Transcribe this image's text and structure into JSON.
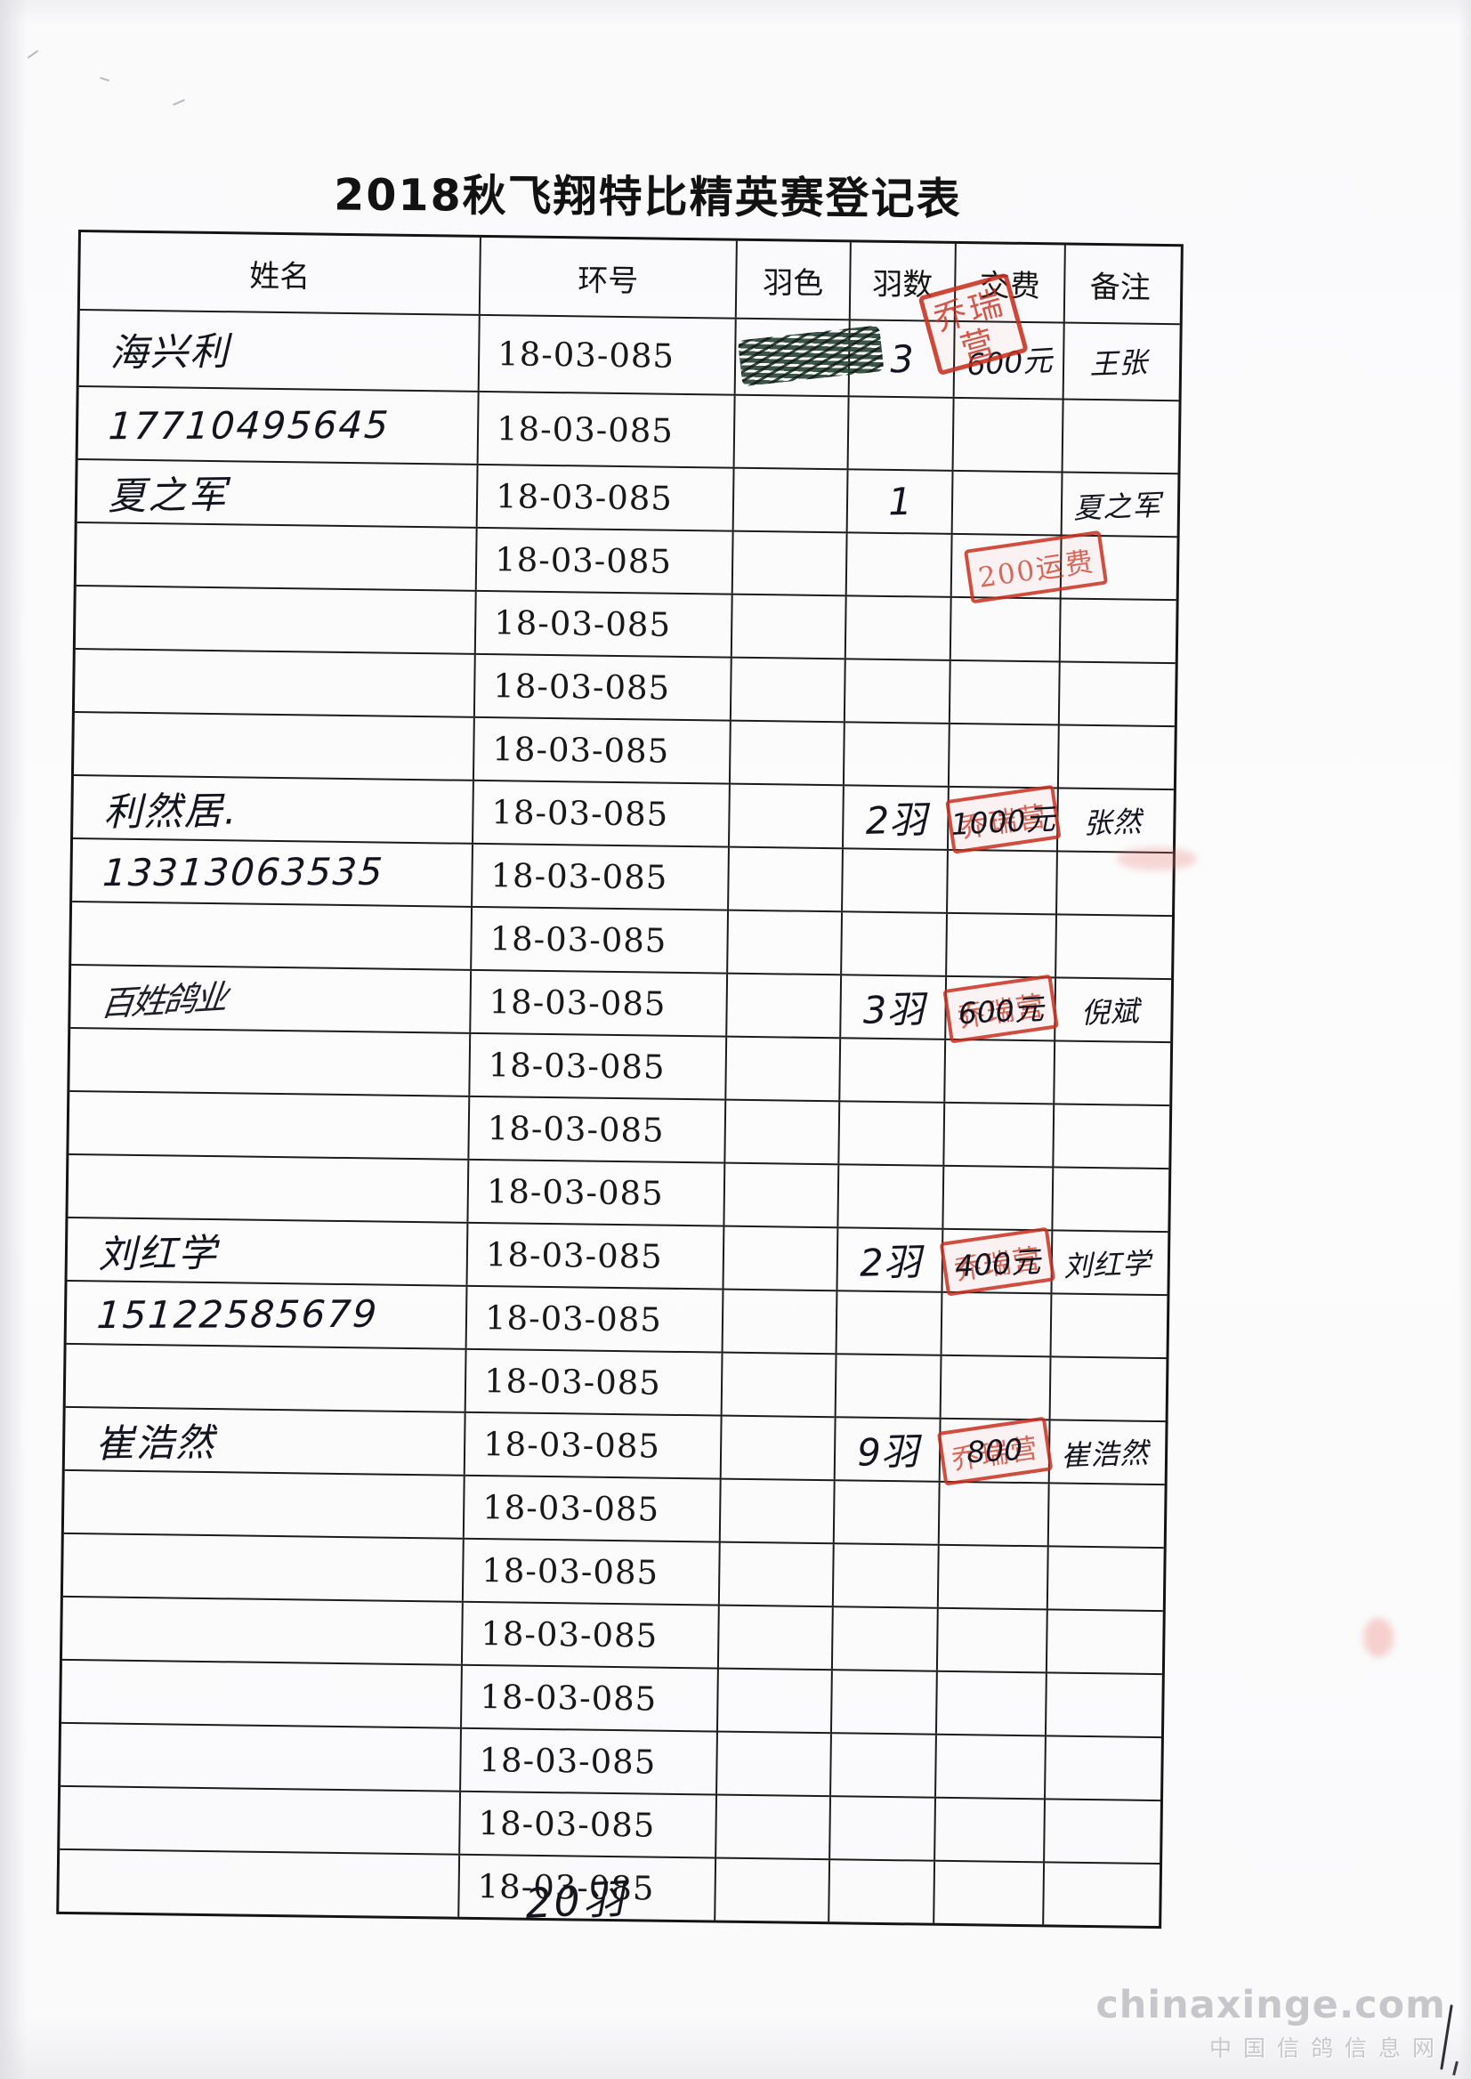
{
  "title": "2018秋飞翔特比精英赛登记表",
  "table": {
    "headers": [
      "姓名",
      "环号",
      "羽色",
      "羽数",
      "交费",
      "备注"
    ],
    "header_stamp": "乔瑞营",
    "rows": [
      {
        "name": "海兴利",
        "name_style": "hw-name",
        "ring": "18-03-085",
        "scribble": true,
        "feather_color": "",
        "count": "3",
        "fee": "600元",
        "fee_stamp": "",
        "note": "王张"
      },
      {
        "name": "17710495645",
        "name_style": "hw-phone",
        "ring": "18-03-085",
        "feather_color": "",
        "count": "",
        "fee": "",
        "fee_stamp": "",
        "note": ""
      },
      {
        "name": "夏之军",
        "name_style": "hw-name",
        "ring": "18-03-085",
        "feather_color": "",
        "count": "1",
        "fee": "",
        "fee_stamp": "",
        "note": "夏之军"
      },
      {
        "name": "",
        "ring": "18-03-085",
        "feather_color": "",
        "count": "",
        "fee": "",
        "fee_stamp": "200运费",
        "stamp_shift": true,
        "note": ""
      },
      {
        "name": "",
        "ring": "18-03-085",
        "feather_color": "",
        "count": "",
        "fee": "",
        "fee_stamp": "",
        "note": ""
      },
      {
        "name": "",
        "ring": "18-03-085",
        "feather_color": "",
        "count": "",
        "fee": "",
        "fee_stamp": "",
        "note": ""
      },
      {
        "name": "",
        "ring": "18-03-085",
        "feather_color": "",
        "count": "",
        "fee": "",
        "fee_stamp": "",
        "note": ""
      },
      {
        "name": "利然居.",
        "name_style": "hw-name",
        "ring": "18-03-085",
        "feather_color": "",
        "count": "2羽",
        "fee": "1000元",
        "fee_stamp": "乔瑞营",
        "note": "张然"
      },
      {
        "name": "13313063535",
        "name_style": "hw-phone",
        "ring": "18-03-085",
        "feather_color": "",
        "count": "",
        "fee": "",
        "fee_stamp": "",
        "note": ""
      },
      {
        "name": "",
        "ring": "18-03-085",
        "feather_color": "",
        "count": "",
        "fee": "",
        "fee_stamp": "",
        "note": ""
      },
      {
        "name": "百姓鸽业",
        "name_style": "hw-scrawl",
        "ring": "18-03-085",
        "feather_color": "",
        "count": "3羽",
        "fee": "600元",
        "fee_stamp": "乔瑞营",
        "note": "倪斌"
      },
      {
        "name": "",
        "ring": "18-03-085",
        "feather_color": "",
        "count": "",
        "fee": "",
        "fee_stamp": "",
        "note": ""
      },
      {
        "name": "",
        "ring": "18-03-085",
        "feather_color": "",
        "count": "",
        "fee": "",
        "fee_stamp": "",
        "note": ""
      },
      {
        "name": "",
        "ring": "18-03-085",
        "feather_color": "",
        "count": "",
        "fee": "",
        "fee_stamp": "",
        "note": ""
      },
      {
        "name": "刘红学",
        "name_style": "hw-name",
        "ring": "18-03-085",
        "feather_color": "",
        "count": "2羽",
        "fee": "400元",
        "fee_stamp": "乔瑞营",
        "note": "刘红学"
      },
      {
        "name": "15122585679",
        "name_style": "hw-phone",
        "ring": "18-03-085",
        "feather_color": "",
        "count": "",
        "fee": "",
        "fee_stamp": "",
        "note": ""
      },
      {
        "name": "",
        "ring": "18-03-085",
        "feather_color": "",
        "count": "",
        "fee": "",
        "fee_stamp": "",
        "note": ""
      },
      {
        "name": "崔浩然",
        "name_style": "hw-name",
        "ring": "18-03-085",
        "feather_color": "",
        "count": "9羽",
        "fee": "800",
        "fee_stamp": "乔瑞营",
        "note": "崔浩然"
      },
      {
        "name": "",
        "ring": "18-03-085",
        "feather_color": "",
        "count": "",
        "fee": "",
        "fee_stamp": "",
        "note": ""
      },
      {
        "name": "",
        "ring": "18-03-085",
        "feather_color": "",
        "count": "",
        "fee": "",
        "fee_stamp": "",
        "note": ""
      },
      {
        "name": "",
        "ring": "18-03-085",
        "feather_color": "",
        "count": "",
        "fee": "",
        "fee_stamp": "",
        "note": ""
      },
      {
        "name": "",
        "ring": "18-03-085",
        "feather_color": "",
        "count": "",
        "fee": "",
        "fee_stamp": "",
        "note": ""
      },
      {
        "name": "",
        "ring": "18-03-085",
        "feather_color": "",
        "count": "",
        "fee": "",
        "fee_stamp": "",
        "note": ""
      },
      {
        "name": "",
        "ring": "18-03-085",
        "feather_color": "",
        "count": "",
        "fee": "",
        "fee_stamp": "",
        "note": ""
      },
      {
        "name": "",
        "ring": "18-03-085",
        "feather_color": "",
        "count": "",
        "fee": "",
        "fee_stamp": "",
        "note": ""
      }
    ]
  },
  "footer": {
    "total_note": "20羽"
  },
  "watermark": {
    "site": "chinaxinge.com",
    "site_cn": "中国信鸽信息网"
  },
  "colors": {
    "stamp_red": "#c73020",
    "ink_black": "#14141f",
    "scribble_green": "#2c473a",
    "border_black": "#141414",
    "watermark_gray": "#c7c7cb",
    "paper": "#fcfcfd"
  }
}
